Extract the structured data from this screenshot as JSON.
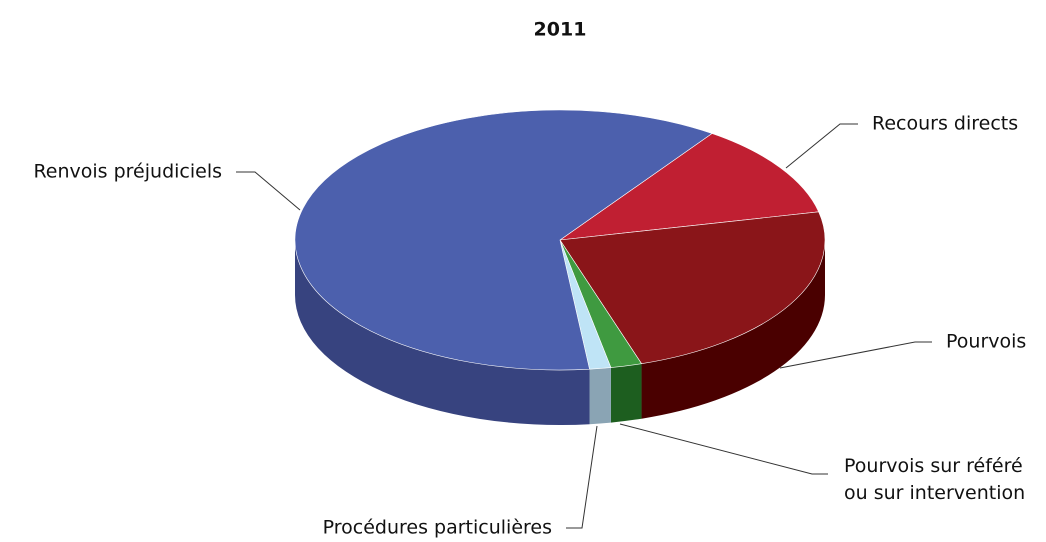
{
  "chart_data": {
    "type": "pie",
    "title": "2011",
    "categories": [
      "Recours directs",
      "Pourvois",
      "Pourvois sur référé ou sur intervention",
      "Procédures particulières",
      "Renvois préjudiciels"
    ],
    "values": [
      11.8,
      23.5,
      1.9,
      1.3,
      61.5
    ],
    "colors": [
      "#c01f32",
      "#8a1519",
      "#3f9a40",
      "#bfe4f6",
      "#4c60ad"
    ],
    "side_colors": [
      "#7e0f1c",
      "#4a0000",
      "#1d5e1f",
      "#8aa4b4",
      "#37437f"
    ]
  }
}
